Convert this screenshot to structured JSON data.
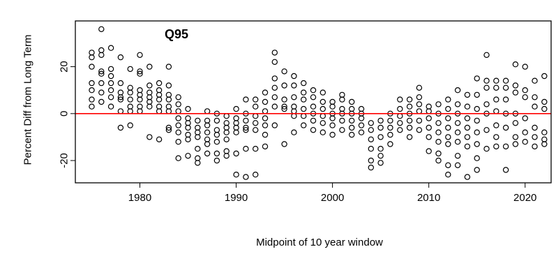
{
  "chart_data": {
    "type": "scatter",
    "title": "Q95",
    "xlabel": "Midpoint of 10 year window",
    "ylabel": "Percent Diff from Long Term",
    "xlim": [
      1973.3,
      2022.7
    ],
    "ylim": [
      -29.5,
      39.5
    ],
    "x_ticks": [
      1980,
      1990,
      2000,
      2010,
      2020
    ],
    "y_ticks": [
      -20,
      0,
      20
    ],
    "y_tick_labels": [
      "-20",
      "0",
      "20"
    ],
    "reference_line": {
      "y": 0,
      "color": "#ff0000"
    },
    "marker": "open-circle",
    "grid": false,
    "points": [
      [
        1975,
        26
      ],
      [
        1975,
        24
      ],
      [
        1975,
        20
      ],
      [
        1975,
        13
      ],
      [
        1975,
        10
      ],
      [
        1975,
        6
      ],
      [
        1975,
        3
      ],
      [
        1976,
        36
      ],
      [
        1976,
        27
      ],
      [
        1976,
        25
      ],
      [
        1976,
        18
      ],
      [
        1976,
        17
      ],
      [
        1976,
        13
      ],
      [
        1976,
        9
      ],
      [
        1976,
        5
      ],
      [
        1977,
        28
      ],
      [
        1977,
        19
      ],
      [
        1977,
        16
      ],
      [
        1977,
        13
      ],
      [
        1977,
        10
      ],
      [
        1977,
        7
      ],
      [
        1977,
        3
      ],
      [
        1978,
        24
      ],
      [
        1978,
        13
      ],
      [
        1978,
        9
      ],
      [
        1978,
        7
      ],
      [
        1978,
        6
      ],
      [
        1978,
        1
      ],
      [
        1978,
        -6
      ],
      [
        1979,
        19
      ],
      [
        1979,
        11
      ],
      [
        1979,
        9
      ],
      [
        1979,
        6
      ],
      [
        1979,
        3
      ],
      [
        1979,
        1
      ],
      [
        1979,
        -5
      ],
      [
        1980,
        25
      ],
      [
        1980,
        18
      ],
      [
        1980,
        17
      ],
      [
        1980,
        10
      ],
      [
        1980,
        8
      ],
      [
        1980,
        6
      ],
      [
        1980,
        3
      ],
      [
        1980,
        1
      ],
      [
        1981,
        20
      ],
      [
        1981,
        12
      ],
      [
        1981,
        9
      ],
      [
        1981,
        7
      ],
      [
        1981,
        5
      ],
      [
        1981,
        3
      ],
      [
        1981,
        -10
      ],
      [
        1982,
        13
      ],
      [
        1982,
        10
      ],
      [
        1982,
        8
      ],
      [
        1982,
        6
      ],
      [
        1982,
        3
      ],
      [
        1982,
        1
      ],
      [
        1982,
        -11
      ],
      [
        1983,
        20
      ],
      [
        1983,
        12
      ],
      [
        1983,
        8
      ],
      [
        1983,
        6
      ],
      [
        1983,
        3
      ],
      [
        1983,
        1
      ],
      [
        1983,
        -6
      ],
      [
        1983,
        -7
      ],
      [
        1984,
        7
      ],
      [
        1984,
        4
      ],
      [
        1984,
        1
      ],
      [
        1984,
        -2
      ],
      [
        1984,
        -5
      ],
      [
        1984,
        -8
      ],
      [
        1984,
        -12
      ],
      [
        1984,
        -19
      ],
      [
        1985,
        2
      ],
      [
        1985,
        -2
      ],
      [
        1985,
        -4
      ],
      [
        1985,
        -6
      ],
      [
        1985,
        -9
      ],
      [
        1985,
        -11
      ],
      [
        1985,
        -18
      ],
      [
        1986,
        -3
      ],
      [
        1986,
        -6
      ],
      [
        1986,
        -8
      ],
      [
        1986,
        -10
      ],
      [
        1986,
        -15
      ],
      [
        1986,
        -19
      ],
      [
        1986,
        -21
      ],
      [
        1987,
        1
      ],
      [
        1987,
        -3
      ],
      [
        1987,
        -5
      ],
      [
        1987,
        -8
      ],
      [
        1987,
        -11
      ],
      [
        1987,
        -13
      ],
      [
        1987,
        -17
      ],
      [
        1988,
        0
      ],
      [
        1988,
        -3
      ],
      [
        1988,
        -7
      ],
      [
        1988,
        -9
      ],
      [
        1988,
        -12
      ],
      [
        1988,
        -17
      ],
      [
        1988,
        -20
      ],
      [
        1989,
        -1
      ],
      [
        1989,
        -4
      ],
      [
        1989,
        -6
      ],
      [
        1989,
        -8
      ],
      [
        1989,
        -11
      ],
      [
        1989,
        -16
      ],
      [
        1989,
        -18
      ],
      [
        1990,
        2
      ],
      [
        1990,
        -2
      ],
      [
        1990,
        -4
      ],
      [
        1990,
        -6
      ],
      [
        1990,
        -8
      ],
      [
        1990,
        -17
      ],
      [
        1990,
        -26
      ],
      [
        1991,
        6
      ],
      [
        1991,
        0
      ],
      [
        1991,
        -3
      ],
      [
        1991,
        -6
      ],
      [
        1991,
        -7
      ],
      [
        1991,
        -15
      ],
      [
        1991,
        -27
      ],
      [
        1992,
        6
      ],
      [
        1992,
        3
      ],
      [
        1992,
        -1
      ],
      [
        1992,
        -4
      ],
      [
        1992,
        -7
      ],
      [
        1992,
        -15
      ],
      [
        1992,
        -26
      ],
      [
        1993,
        9
      ],
      [
        1993,
        5
      ],
      [
        1993,
        1
      ],
      [
        1993,
        -2
      ],
      [
        1993,
        -5
      ],
      [
        1993,
        -9
      ],
      [
        1993,
        -14
      ],
      [
        1994,
        26
      ],
      [
        1994,
        22
      ],
      [
        1994,
        15
      ],
      [
        1994,
        11
      ],
      [
        1994,
        7
      ],
      [
        1994,
        3
      ],
      [
        1994,
        -5
      ],
      [
        1995,
        18
      ],
      [
        1995,
        12
      ],
      [
        1995,
        6
      ],
      [
        1995,
        3
      ],
      [
        1995,
        2
      ],
      [
        1995,
        -13
      ],
      [
        1996,
        16
      ],
      [
        1996,
        12
      ],
      [
        1996,
        7
      ],
      [
        1996,
        3
      ],
      [
        1996,
        1
      ],
      [
        1996,
        -1
      ],
      [
        1996,
        -8
      ],
      [
        1997,
        13
      ],
      [
        1997,
        9
      ],
      [
        1997,
        6
      ],
      [
        1997,
        2
      ],
      [
        1997,
        -1
      ],
      [
        1997,
        -5
      ],
      [
        1998,
        10
      ],
      [
        1998,
        7
      ],
      [
        1998,
        3
      ],
      [
        1998,
        0
      ],
      [
        1998,
        -3
      ],
      [
        1998,
        -7
      ],
      [
        1999,
        9
      ],
      [
        1999,
        5
      ],
      [
        1999,
        2
      ],
      [
        1999,
        -1
      ],
      [
        1999,
        -4
      ],
      [
        1999,
        -8
      ],
      [
        2000,
        5
      ],
      [
        2000,
        3
      ],
      [
        2000,
        0
      ],
      [
        2000,
        -2
      ],
      [
        2000,
        -5
      ],
      [
        2000,
        -9
      ],
      [
        2001,
        8
      ],
      [
        2001,
        6
      ],
      [
        2001,
        2
      ],
      [
        2001,
        0
      ],
      [
        2001,
        -3
      ],
      [
        2001,
        -7
      ],
      [
        2002,
        5
      ],
      [
        2002,
        2
      ],
      [
        2002,
        0
      ],
      [
        2002,
        -3
      ],
      [
        2002,
        -6
      ],
      [
        2002,
        -9
      ],
      [
        2003,
        2
      ],
      [
        2003,
        0
      ],
      [
        2003,
        -2
      ],
      [
        2003,
        -5
      ],
      [
        2003,
        -8
      ],
      [
        2004,
        -4
      ],
      [
        2004,
        -7
      ],
      [
        2004,
        -11
      ],
      [
        2004,
        -15
      ],
      [
        2004,
        -20
      ],
      [
        2004,
        -23
      ],
      [
        2005,
        -3
      ],
      [
        2005,
        -6
      ],
      [
        2005,
        -10
      ],
      [
        2005,
        -15
      ],
      [
        2005,
        -18
      ],
      [
        2005,
        -21
      ],
      [
        2006,
        0
      ],
      [
        2006,
        -3
      ],
      [
        2006,
        -6
      ],
      [
        2006,
        -9
      ],
      [
        2006,
        -13
      ],
      [
        2007,
        6
      ],
      [
        2007,
        2
      ],
      [
        2007,
        -1
      ],
      [
        2007,
        -4
      ],
      [
        2007,
        -7
      ],
      [
        2008,
        6
      ],
      [
        2008,
        3
      ],
      [
        2008,
        0
      ],
      [
        2008,
        -3
      ],
      [
        2008,
        -6
      ],
      [
        2008,
        -10
      ],
      [
        2009,
        11
      ],
      [
        2009,
        7
      ],
      [
        2009,
        4
      ],
      [
        2009,
        1
      ],
      [
        2009,
        -3
      ],
      [
        2009,
        -7
      ],
      [
        2010,
        3
      ],
      [
        2010,
        1
      ],
      [
        2010,
        -2
      ],
      [
        2010,
        -6
      ],
      [
        2010,
        -10
      ],
      [
        2010,
        -16
      ],
      [
        2011,
        4
      ],
      [
        2011,
        0
      ],
      [
        2011,
        -4
      ],
      [
        2011,
        -8
      ],
      [
        2011,
        -12
      ],
      [
        2011,
        -17
      ],
      [
        2011,
        -20
      ],
      [
        2012,
        6
      ],
      [
        2012,
        2
      ],
      [
        2012,
        -2
      ],
      [
        2012,
        -6
      ],
      [
        2012,
        -10
      ],
      [
        2012,
        -13
      ],
      [
        2012,
        -22
      ],
      [
        2012,
        -26
      ],
      [
        2013,
        10
      ],
      [
        2013,
        4
      ],
      [
        2013,
        0
      ],
      [
        2013,
        -4
      ],
      [
        2013,
        -8
      ],
      [
        2013,
        -12
      ],
      [
        2013,
        -18
      ],
      [
        2013,
        -22
      ],
      [
        2014,
        8
      ],
      [
        2014,
        3
      ],
      [
        2014,
        -2
      ],
      [
        2014,
        -6
      ],
      [
        2014,
        -10
      ],
      [
        2014,
        -14
      ],
      [
        2014,
        -27
      ],
      [
        2015,
        15
      ],
      [
        2015,
        8
      ],
      [
        2015,
        2
      ],
      [
        2015,
        -3
      ],
      [
        2015,
        -8
      ],
      [
        2015,
        -13
      ],
      [
        2015,
        -19
      ],
      [
        2015,
        -24
      ],
      [
        2016,
        25
      ],
      [
        2016,
        14
      ],
      [
        2016,
        11
      ],
      [
        2016,
        4
      ],
      [
        2016,
        0
      ],
      [
        2016,
        -7
      ],
      [
        2016,
        -15
      ],
      [
        2017,
        14
      ],
      [
        2017,
        11
      ],
      [
        2017,
        6
      ],
      [
        2017,
        1
      ],
      [
        2017,
        -5
      ],
      [
        2017,
        -10
      ],
      [
        2017,
        -14
      ],
      [
        2018,
        14
      ],
      [
        2018,
        11
      ],
      [
        2018,
        6
      ],
      [
        2018,
        0
      ],
      [
        2018,
        -6
      ],
      [
        2018,
        -14
      ],
      [
        2018,
        -24
      ],
      [
        2019,
        21
      ],
      [
        2019,
        12
      ],
      [
        2019,
        9
      ],
      [
        2019,
        0
      ],
      [
        2019,
        -4
      ],
      [
        2019,
        -10
      ],
      [
        2019,
        -13
      ],
      [
        2020,
        20
      ],
      [
        2020,
        10
      ],
      [
        2020,
        7
      ],
      [
        2020,
        -2
      ],
      [
        2020,
        -8
      ],
      [
        2020,
        -12
      ],
      [
        2021,
        14
      ],
      [
        2021,
        7
      ],
      [
        2021,
        3
      ],
      [
        2021,
        -6
      ],
      [
        2021,
        -10
      ],
      [
        2021,
        -14
      ],
      [
        2022,
        16
      ],
      [
        2022,
        5
      ],
      [
        2022,
        2
      ],
      [
        2022,
        -8
      ],
      [
        2022,
        -11
      ],
      [
        2022,
        -13
      ]
    ]
  }
}
